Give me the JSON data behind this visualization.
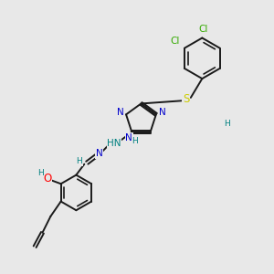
{
  "background_color": "#e8e8e8",
  "bond_color": "#1a1a1a",
  "nitrogen_color": "#0000cc",
  "oxygen_color": "#ff0000",
  "sulfur_color": "#cccc00",
  "chlorine_color": "#33aa00",
  "h_color": "#008080",
  "figsize": [
    3.0,
    3.0
  ],
  "dpi": 100,
  "xlim": [
    0,
    10
  ],
  "ylim": [
    0,
    10
  ]
}
